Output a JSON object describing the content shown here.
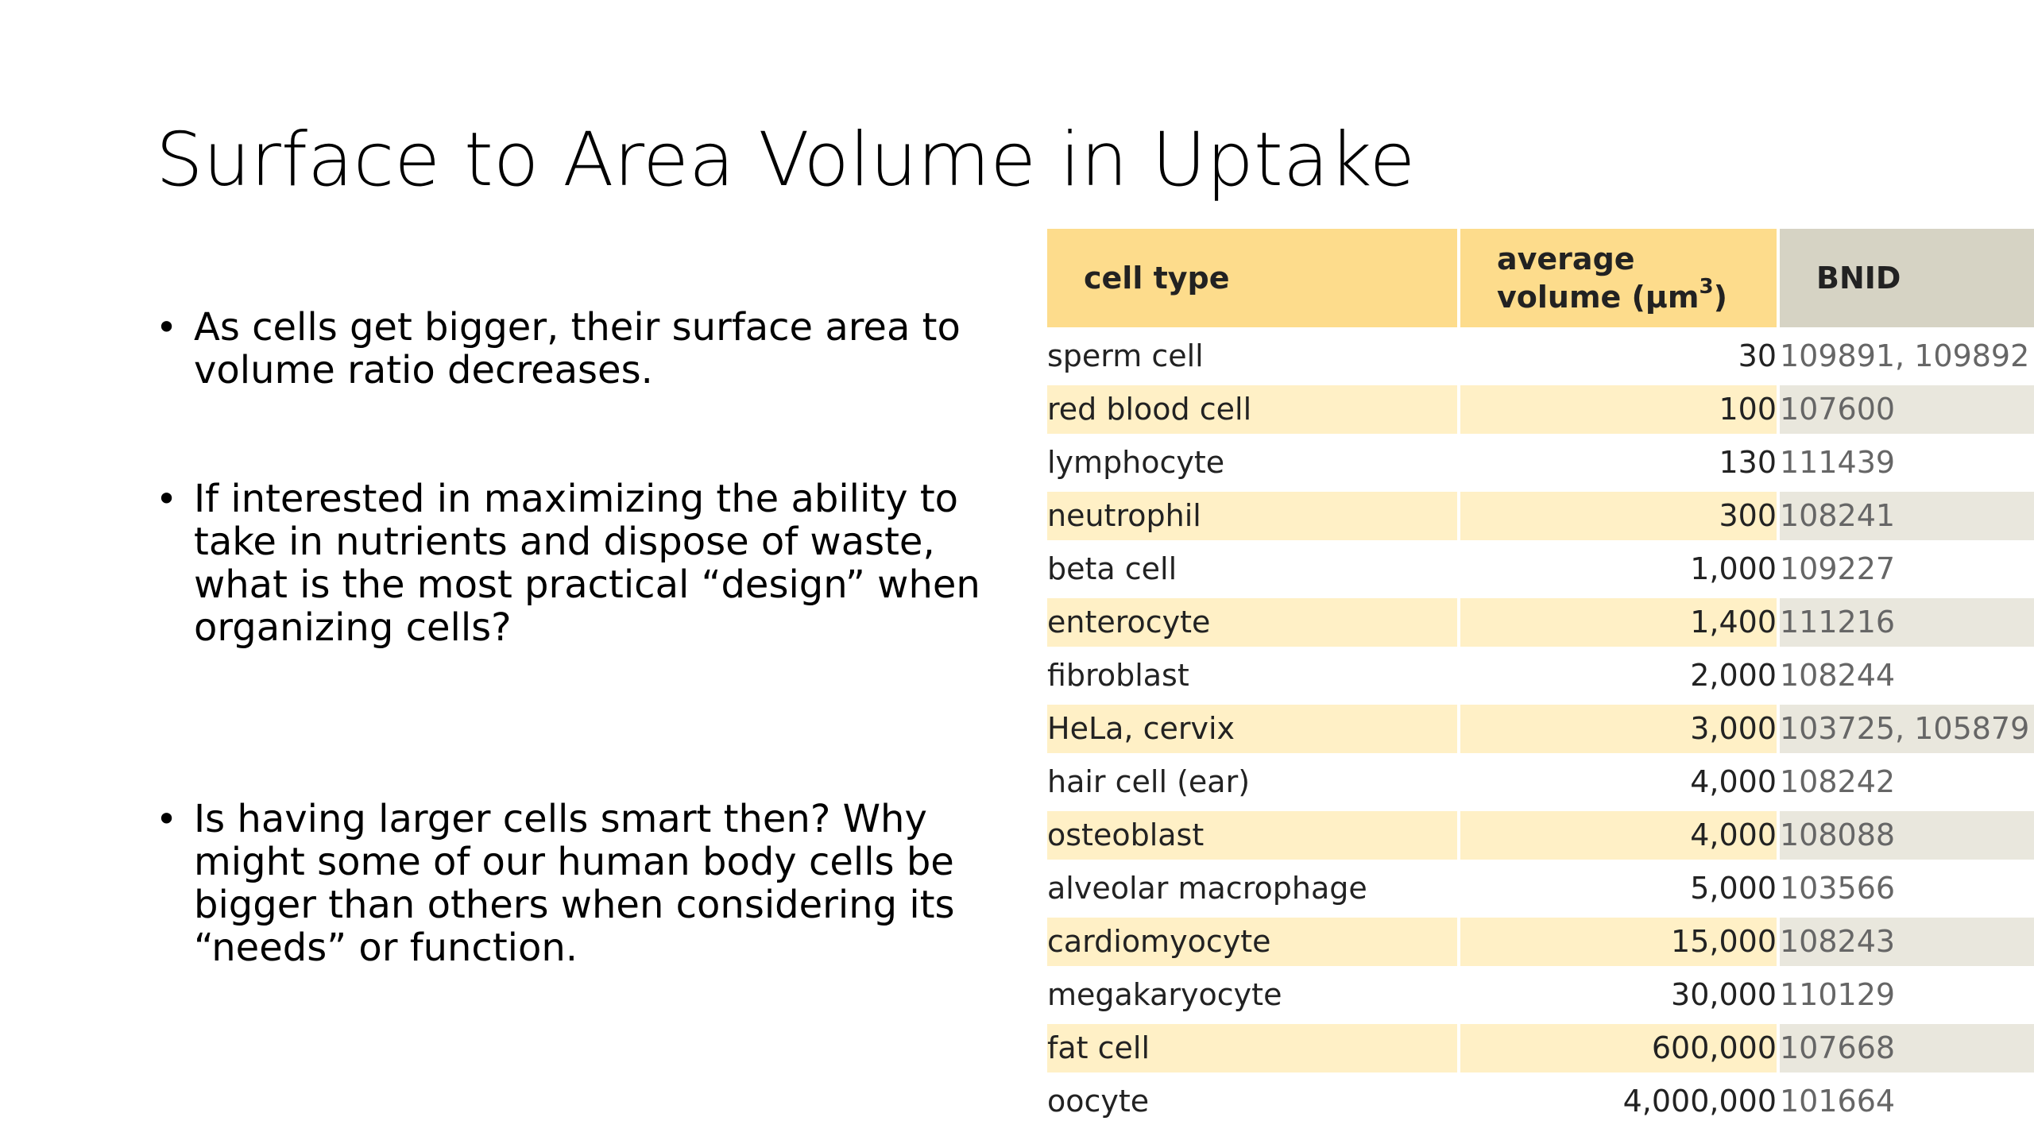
{
  "slide": {
    "title": "Surface to Area Volume in Uptake",
    "bullets": [
      "As cells get bigger, their surface area to volume ratio decreases.",
      "If interested in maximizing the ability to take in nutrients and dispose of waste, what is the most practical “design” when organizing cells?",
      "Is having larger cells smart then? Why might some of our human body cells be bigger than others when considering its “needs” or function."
    ]
  },
  "table": {
    "headers": {
      "cell_type": "cell type",
      "average_volume_line1": "average",
      "average_volume_line2": "volume (μm",
      "average_volume_sup": "3",
      "average_volume_close": ")",
      "bnid": "BNID"
    },
    "rows": [
      {
        "cell_type": "sperm cell",
        "volume": "30",
        "bnid": "109891, 109892"
      },
      {
        "cell_type": "red blood cell",
        "volume": "100",
        "bnid": "107600"
      },
      {
        "cell_type": "lymphocyte",
        "volume": "130",
        "bnid": "111439"
      },
      {
        "cell_type": "neutrophil",
        "volume": "300",
        "bnid": "108241"
      },
      {
        "cell_type": "beta cell",
        "volume": "1,000",
        "bnid": "109227"
      },
      {
        "cell_type": "enterocyte",
        "volume": "1,400",
        "bnid": "111216"
      },
      {
        "cell_type": "fibroblast",
        "volume": "2,000",
        "bnid": "108244"
      },
      {
        "cell_type": "HeLa, cervix",
        "volume": "3,000",
        "bnid": "103725, 105879"
      },
      {
        "cell_type": "hair cell (ear)",
        "volume": "4,000",
        "bnid": "108242"
      },
      {
        "cell_type": "osteoblast",
        "volume": "4,000",
        "bnid": "108088"
      },
      {
        "cell_type": "alveolar macrophage",
        "volume": "5,000",
        "bnid": "103566"
      },
      {
        "cell_type": "cardiomyocyte",
        "volume": "15,000",
        "bnid": "108243"
      },
      {
        "cell_type": "megakaryocyte",
        "volume": "30,000",
        "bnid": "110129"
      },
      {
        "cell_type": "fat cell",
        "volume": "600,000",
        "bnid": "107668"
      },
      {
        "cell_type": "oocyte",
        "volume": "4,000,000",
        "bnid": "101664"
      }
    ]
  },
  "colors": {
    "header_yellow": "#fddc8c",
    "header_grey": "#d6d3c4",
    "row_yellow": "#fff0c6",
    "row_grey": "#e9e7dd"
  }
}
